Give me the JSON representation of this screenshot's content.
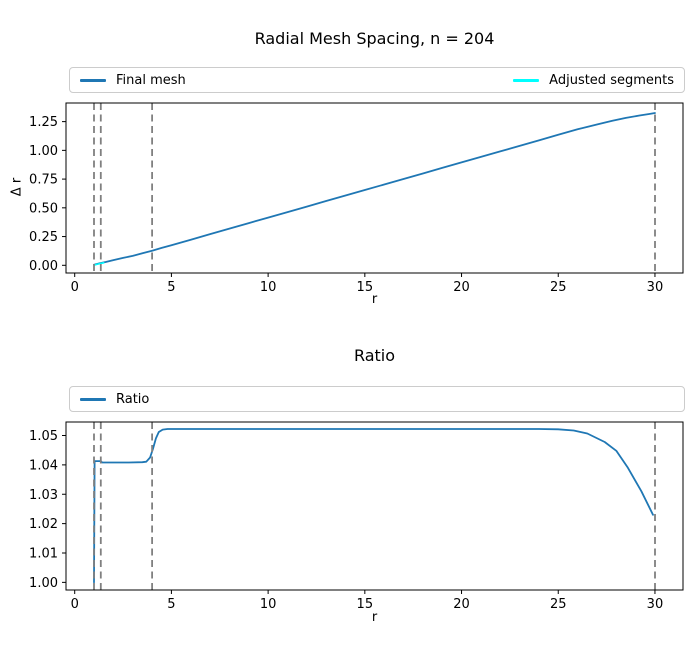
{
  "figure": {
    "background": "#ffffff",
    "text_color": "#000000",
    "spine_color": "#000000"
  },
  "chart_data": [
    {
      "type": "line",
      "title": "Radial Mesh Spacing, n = 204",
      "xlabel": "r",
      "ylabel": "Δ r",
      "grid": false,
      "legend_position": "top-expand",
      "xlim": [
        -0.45,
        31.45
      ],
      "ylim": [
        -0.067,
        1.412
      ],
      "xticks": {
        "values": [
          0,
          5,
          10,
          15,
          20,
          25,
          30
        ],
        "labels": [
          "0",
          "5",
          "10",
          "15",
          "20",
          "25",
          "30"
        ]
      },
      "yticks": {
        "values": [
          0.0,
          0.25,
          0.5,
          0.75,
          1.0,
          1.25
        ],
        "labels": [
          "0.00",
          "0.25",
          "0.50",
          "0.75",
          "1.00",
          "1.25"
        ]
      },
      "legend": {
        "entries": [
          {
            "label": "Final mesh",
            "color": "#1f77b4"
          },
          {
            "label": "Adjusted segments",
            "color": "#00ffff"
          }
        ]
      },
      "vlines": {
        "x": [
          1.0,
          1.35,
          4.0,
          30.0
        ],
        "color": "#808080",
        "dash": [
          7,
          4.5
        ],
        "width": 1.8
      },
      "series": [
        {
          "name": "Final mesh",
          "color": "#1f77b4",
          "width": 1.8,
          "x": [
            1.0,
            1.15,
            1.3,
            1.6,
            2.0,
            2.5,
            3.0,
            3.5,
            4.0,
            4.5,
            5.0,
            6.0,
            7.0,
            8.0,
            9.0,
            10.0,
            11.0,
            12.0,
            13.0,
            14.0,
            15.0,
            16.0,
            17.0,
            18.0,
            19.0,
            20.0,
            21.0,
            22.0,
            23.0,
            24.0,
            25.0,
            26.0,
            27.0,
            27.8,
            28.5,
            29.2,
            29.7,
            30.0
          ],
          "y": [
            0.005,
            0.011,
            0.017,
            0.029,
            0.045,
            0.064,
            0.082,
            0.104,
            0.127,
            0.151,
            0.175,
            0.223,
            0.271,
            0.319,
            0.367,
            0.415,
            0.463,
            0.511,
            0.559,
            0.607,
            0.655,
            0.703,
            0.751,
            0.799,
            0.847,
            0.895,
            0.943,
            0.991,
            1.039,
            1.087,
            1.135,
            1.183,
            1.225,
            1.257,
            1.282,
            1.303,
            1.316,
            1.325
          ]
        },
        {
          "name": "Adjusted segments",
          "color": "#00ffff",
          "width": 1.6,
          "x": [
            1.0,
            1.12,
            1.25,
            1.38,
            1.5
          ],
          "y": [
            0.002,
            0.007,
            0.012,
            0.017,
            0.022
          ]
        }
      ]
    },
    {
      "type": "line",
      "title": "Ratio",
      "xlabel": "r",
      "ylabel": "",
      "grid": false,
      "legend_position": "top-expand",
      "xlim": [
        -0.45,
        31.45
      ],
      "ylim": [
        0.9974,
        1.0546
      ],
      "xticks": {
        "values": [
          0,
          5,
          10,
          15,
          20,
          25,
          30
        ],
        "labels": [
          "0",
          "5",
          "10",
          "15",
          "20",
          "25",
          "30"
        ]
      },
      "yticks": {
        "values": [
          1.0,
          1.01,
          1.02,
          1.03,
          1.04,
          1.05
        ],
        "labels": [
          "1.00",
          "1.01",
          "1.02",
          "1.03",
          "1.04",
          "1.05"
        ]
      },
      "legend": {
        "entries": [
          {
            "label": "Ratio",
            "color": "#1f77b4"
          }
        ]
      },
      "vlines": {
        "x": [
          1.0,
          1.35,
          4.0,
          30.0
        ],
        "color": "#808080",
        "dash": [
          7,
          4.5
        ],
        "width": 1.8
      },
      "series": [
        {
          "name": "Ratio",
          "color": "#1f77b4",
          "width": 1.8,
          "x": [
            1.0,
            1.03,
            1.1,
            1.35,
            1.42,
            2.0,
            2.8,
            3.5,
            3.7,
            3.9,
            4.05,
            4.2,
            4.35,
            4.55,
            4.8,
            6.0,
            8.0,
            12.0,
            16.0,
            20.0,
            24.0,
            25.0,
            25.8,
            26.5,
            27.4,
            28.0,
            28.6,
            29.3,
            29.9
          ],
          "y": [
            1.0,
            1.0413,
            1.0413,
            1.0413,
            1.0408,
            1.0408,
            1.0408,
            1.0409,
            1.0411,
            1.0425,
            1.0455,
            1.049,
            1.0512,
            1.052,
            1.0522,
            1.0522,
            1.0522,
            1.0522,
            1.0522,
            1.0522,
            1.0522,
            1.0521,
            1.0517,
            1.0507,
            1.0478,
            1.0448,
            1.039,
            1.031,
            1.023
          ]
        }
      ]
    }
  ]
}
